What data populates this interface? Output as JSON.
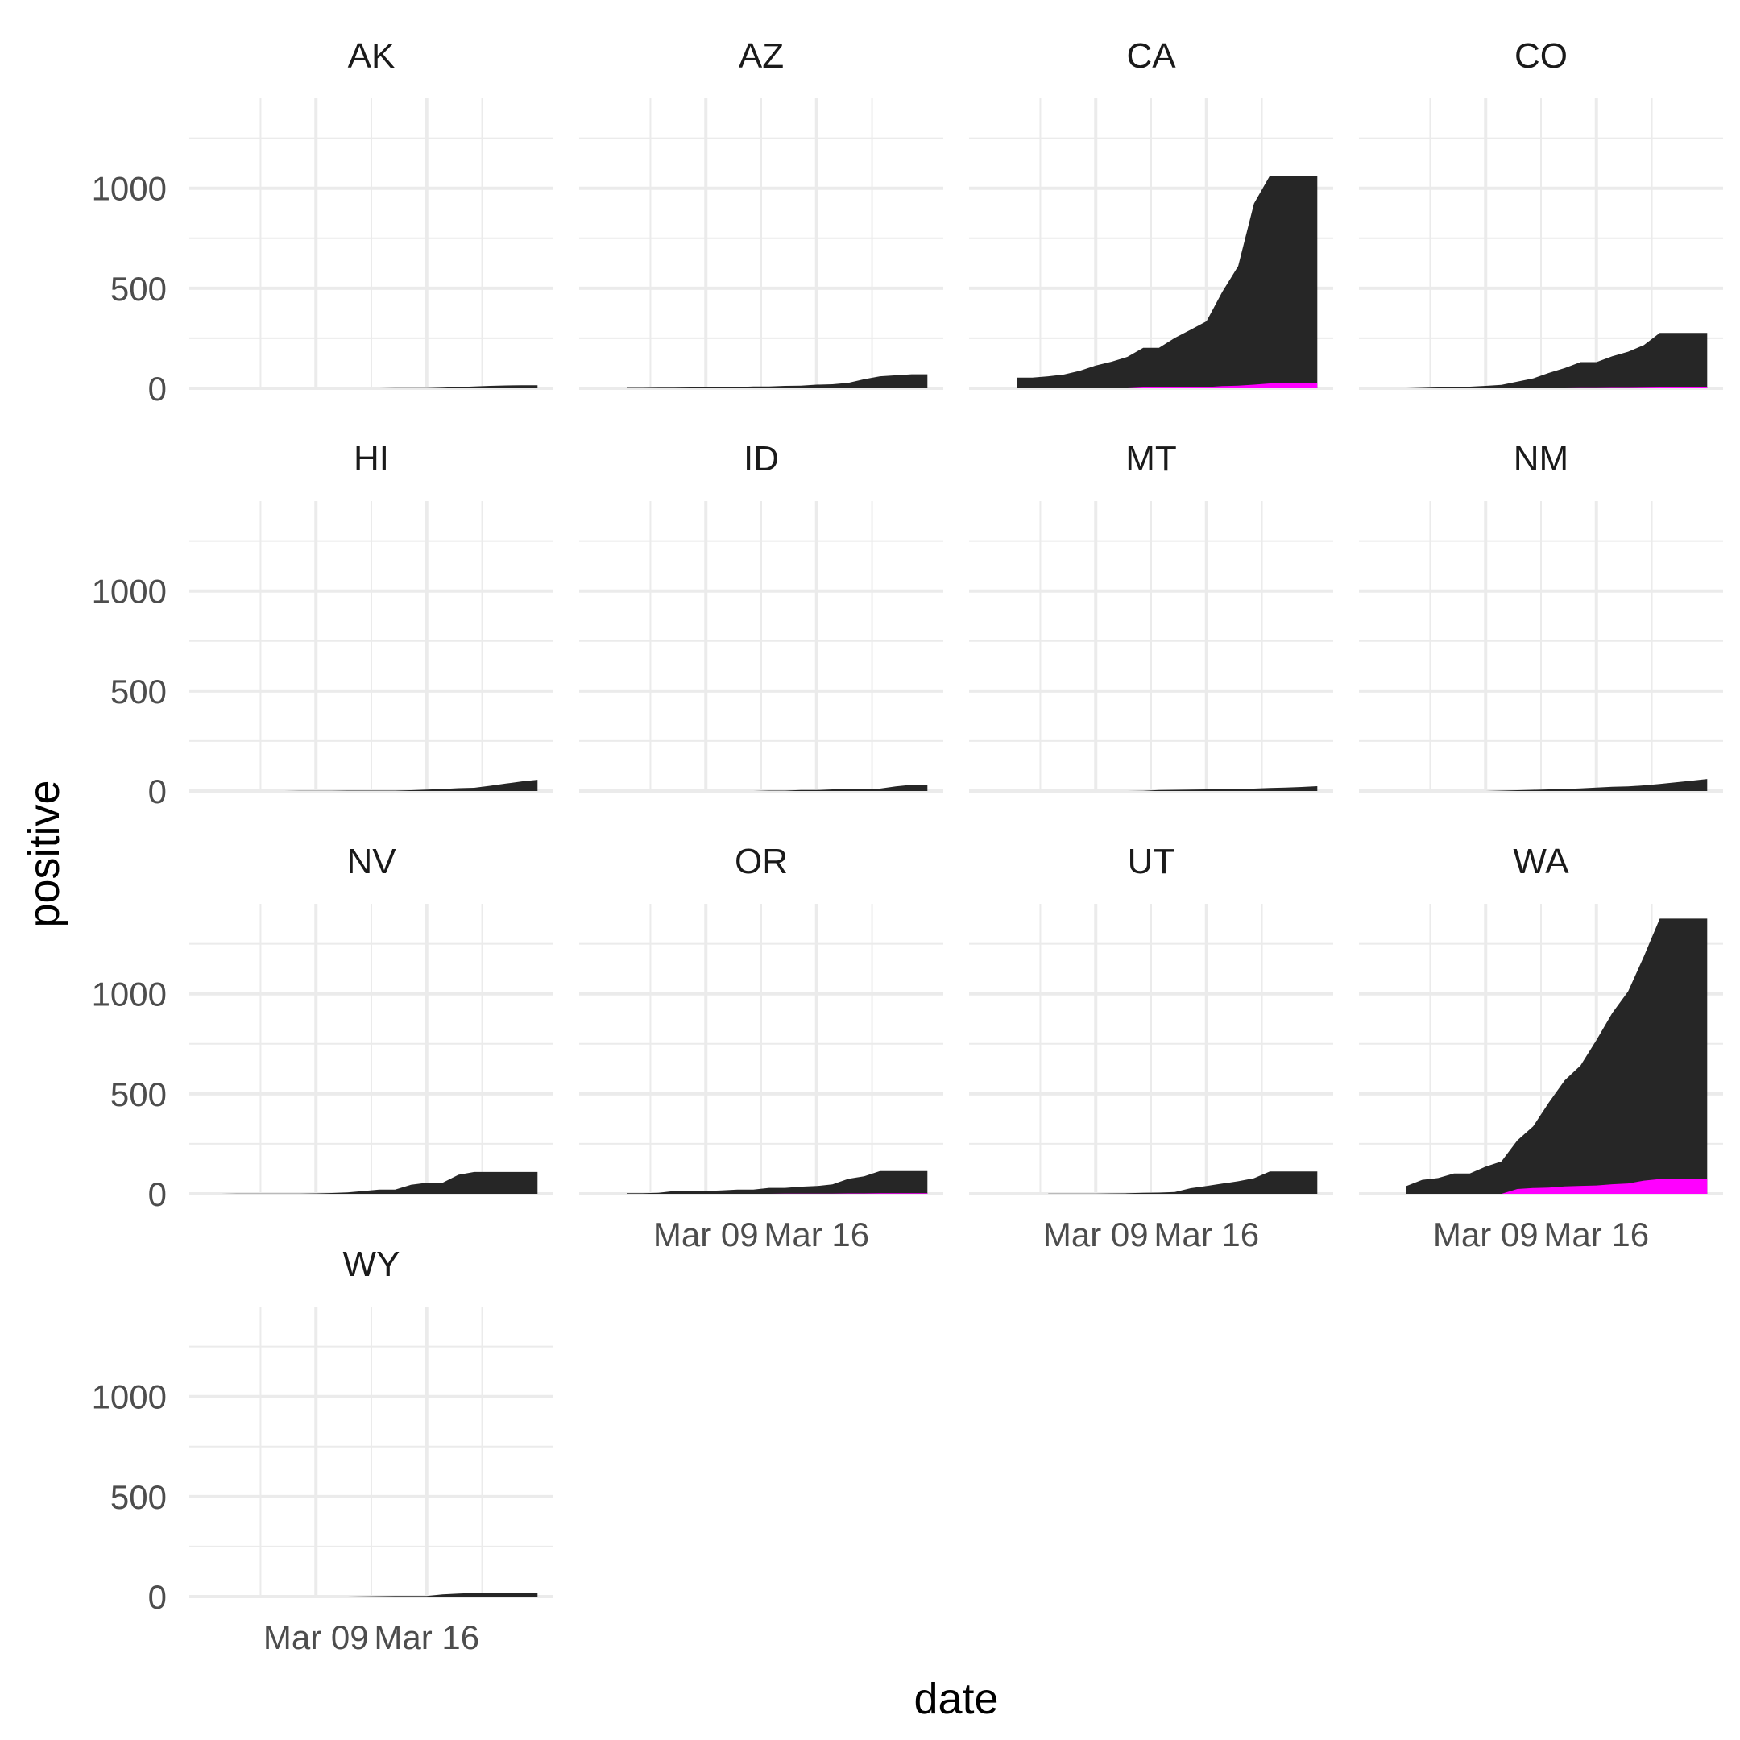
{
  "chart_data": {
    "type": "area",
    "layout": "facet_wrap",
    "ncol": 4,
    "xlabel": "date",
    "ylabel": "positive",
    "ylim": [
      0,
      1450
    ],
    "xlim": [
      "2020-03-01",
      "2020-03-24"
    ],
    "yticks": [
      0,
      500,
      1000
    ],
    "ytick_labels": [
      "0",
      "500",
      "1000"
    ],
    "xticks": [
      "2020-03-09",
      "2020-03-16"
    ],
    "xtick_labels": [
      "Mar 09",
      "Mar 16"
    ],
    "grid": true,
    "colors": {
      "positive": "#262626",
      "deaths": "#ff00ff"
    },
    "panels": [
      {
        "name": "AK",
        "dates": [
          "2020-03-10",
          "2020-03-11",
          "2020-03-12",
          "2020-03-13",
          "2020-03-14",
          "2020-03-15",
          "2020-03-16",
          "2020-03-17",
          "2020-03-18",
          "2020-03-19",
          "2020-03-20",
          "2020-03-21",
          "2020-03-22",
          "2020-03-23"
        ],
        "positive": [
          0,
          0,
          0,
          0,
          1,
          1,
          1,
          3,
          6,
          9,
          12,
          14,
          15,
          15
        ],
        "deaths": []
      },
      {
        "name": "AZ",
        "dates": [
          "2020-03-04",
          "2020-03-05",
          "2020-03-06",
          "2020-03-07",
          "2020-03-08",
          "2020-03-09",
          "2020-03-10",
          "2020-03-11",
          "2020-03-12",
          "2020-03-13",
          "2020-03-14",
          "2020-03-15",
          "2020-03-16",
          "2020-03-17",
          "2020-03-18",
          "2020-03-19",
          "2020-03-20",
          "2020-03-21",
          "2020-03-22",
          "2020-03-23"
        ],
        "positive": [
          2,
          2,
          3,
          3,
          4,
          5,
          6,
          6,
          9,
          9,
          12,
          13,
          18,
          20,
          27,
          45,
          60,
          65,
          70,
          70
        ],
        "deaths": []
      },
      {
        "name": "CA",
        "dates": [
          "2020-03-04",
          "2020-03-05",
          "2020-03-06",
          "2020-03-07",
          "2020-03-08",
          "2020-03-09",
          "2020-03-10",
          "2020-03-11",
          "2020-03-12",
          "2020-03-13",
          "2020-03-14",
          "2020-03-15",
          "2020-03-16",
          "2020-03-17",
          "2020-03-18",
          "2020-03-19",
          "2020-03-20",
          "2020-03-21",
          "2020-03-22",
          "2020-03-23"
        ],
        "positive": [
          53,
          53,
          60,
          69,
          88,
          114,
          133,
          157,
          202,
          202,
          252,
          293,
          335,
          483,
          611,
          924,
          1063,
          1063,
          1063,
          1063
        ],
        "deaths": [
          0,
          0,
          0,
          0,
          0,
          0,
          0,
          0,
          4,
          4,
          5,
          5,
          6,
          11,
          13,
          18,
          24,
          24,
          24,
          24
        ]
      },
      {
        "name": "CO",
        "dates": [
          "2020-03-04",
          "2020-03-05",
          "2020-03-06",
          "2020-03-07",
          "2020-03-08",
          "2020-03-09",
          "2020-03-10",
          "2020-03-11",
          "2020-03-12",
          "2020-03-13",
          "2020-03-14",
          "2020-03-15",
          "2020-03-16",
          "2020-03-17",
          "2020-03-18",
          "2020-03-19",
          "2020-03-20",
          "2020-03-21",
          "2020-03-22",
          "2020-03-23"
        ],
        "positive": [
          0,
          2,
          4,
          8,
          8,
          12,
          17,
          33,
          49,
          77,
          101,
          131,
          131,
          160,
          183,
          216,
          277,
          277,
          277,
          277
        ],
        "deaths": [
          0,
          0,
          0,
          0,
          0,
          0,
          0,
          0,
          0,
          0,
          0,
          1,
          1,
          2,
          2,
          3,
          4,
          4,
          4,
          4
        ]
      },
      {
        "name": "HI",
        "dates": [
          "2020-03-06",
          "2020-03-07",
          "2020-03-08",
          "2020-03-09",
          "2020-03-10",
          "2020-03-11",
          "2020-03-12",
          "2020-03-13",
          "2020-03-14",
          "2020-03-15",
          "2020-03-16",
          "2020-03-17",
          "2020-03-18",
          "2020-03-19",
          "2020-03-20",
          "2020-03-21",
          "2020-03-22",
          "2020-03-23"
        ],
        "positive": [
          0,
          0,
          1,
          1,
          1,
          2,
          2,
          2,
          2,
          4,
          7,
          10,
          14,
          16,
          26,
          37,
          48,
          56
        ],
        "deaths": []
      },
      {
        "name": "ID",
        "dates": [
          "2020-03-12",
          "2020-03-13",
          "2020-03-14",
          "2020-03-15",
          "2020-03-16",
          "2020-03-17",
          "2020-03-18",
          "2020-03-19",
          "2020-03-20",
          "2020-03-21",
          "2020-03-22",
          "2020-03-23"
        ],
        "positive": [
          0,
          2,
          2,
          5,
          5,
          8,
          9,
          11,
          12,
          23,
          31,
          31
        ],
        "deaths": []
      },
      {
        "name": "MT",
        "dates": [
          "2020-03-11",
          "2020-03-12",
          "2020-03-13",
          "2020-03-14",
          "2020-03-15",
          "2020-03-16",
          "2020-03-17",
          "2020-03-18",
          "2020-03-19",
          "2020-03-20",
          "2020-03-21",
          "2020-03-22",
          "2020-03-23"
        ],
        "positive": [
          0,
          1,
          5,
          6,
          7,
          8,
          9,
          11,
          12,
          15,
          17,
          20,
          24
        ],
        "deaths": []
      },
      {
        "name": "NM",
        "dates": [
          "2020-03-09",
          "2020-03-10",
          "2020-03-11",
          "2020-03-12",
          "2020-03-13",
          "2020-03-14",
          "2020-03-15",
          "2020-03-16",
          "2020-03-17",
          "2020-03-18",
          "2020-03-19",
          "2020-03-20",
          "2020-03-21",
          "2020-03-22",
          "2020-03-23"
        ],
        "positive": [
          0,
          2,
          4,
          6,
          8,
          10,
          13,
          17,
          21,
          23,
          28,
          35,
          43,
          51,
          60
        ],
        "deaths": []
      },
      {
        "name": "NV",
        "dates": [
          "2020-03-02",
          "2020-03-03",
          "2020-03-04",
          "2020-03-05",
          "2020-03-06",
          "2020-03-07",
          "2020-03-08",
          "2020-03-09",
          "2020-03-10",
          "2020-03-11",
          "2020-03-12",
          "2020-03-13",
          "2020-03-14",
          "2020-03-15",
          "2020-03-16",
          "2020-03-17",
          "2020-03-18",
          "2020-03-19",
          "2020-03-20",
          "2020-03-21",
          "2020-03-22",
          "2020-03-23"
        ],
        "positive": [
          0,
          0,
          1,
          1,
          1,
          1,
          1,
          2,
          4,
          7,
          14,
          21,
          21,
          45,
          55,
          55,
          95,
          109,
          109,
          109,
          109,
          109
        ],
        "deaths": []
      },
      {
        "name": "OR",
        "dates": [
          "2020-03-04",
          "2020-03-05",
          "2020-03-06",
          "2020-03-07",
          "2020-03-08",
          "2020-03-09",
          "2020-03-10",
          "2020-03-11",
          "2020-03-12",
          "2020-03-13",
          "2020-03-14",
          "2020-03-15",
          "2020-03-16",
          "2020-03-17",
          "2020-03-18",
          "2020-03-19",
          "2020-03-20",
          "2020-03-21",
          "2020-03-22",
          "2020-03-23"
        ],
        "positive": [
          3,
          3,
          5,
          14,
          14,
          15,
          17,
          21,
          21,
          30,
          30,
          36,
          39,
          47,
          75,
          88,
          114,
          114,
          114,
          114
        ],
        "deaths": [
          0,
          0,
          0,
          0,
          0,
          0,
          0,
          0,
          0,
          0,
          1,
          1,
          1,
          1,
          2,
          2,
          3,
          3,
          3,
          3
        ]
      },
      {
        "name": "UT",
        "dates": [
          "2020-03-06",
          "2020-03-07",
          "2020-03-08",
          "2020-03-09",
          "2020-03-10",
          "2020-03-11",
          "2020-03-12",
          "2020-03-13",
          "2020-03-14",
          "2020-03-15",
          "2020-03-16",
          "2020-03-17",
          "2020-03-18",
          "2020-03-19",
          "2020-03-20",
          "2020-03-21",
          "2020-03-22",
          "2020-03-23"
        ],
        "positive": [
          1,
          1,
          1,
          1,
          2,
          3,
          5,
          6,
          9,
          28,
          39,
          51,
          63,
          78,
          112,
          112,
          112,
          112
        ],
        "deaths": []
      },
      {
        "name": "WA",
        "dates": [
          "2020-03-04",
          "2020-03-05",
          "2020-03-06",
          "2020-03-07",
          "2020-03-08",
          "2020-03-09",
          "2020-03-10",
          "2020-03-11",
          "2020-03-12",
          "2020-03-13",
          "2020-03-14",
          "2020-03-15",
          "2020-03-16",
          "2020-03-17",
          "2020-03-18",
          "2020-03-19",
          "2020-03-20",
          "2020-03-21",
          "2020-03-22",
          "2020-03-23"
        ],
        "positive": [
          39,
          70,
          79,
          102,
          102,
          136,
          162,
          267,
          337,
          457,
          568,
          642,
          769,
          904,
          1012,
          1187,
          1376,
          1376,
          1376,
          1376
        ],
        "deaths": [
          0,
          0,
          0,
          0,
          0,
          0,
          0,
          24,
          29,
          31,
          37,
          40,
          42,
          48,
          52,
          66,
          74,
          74,
          74,
          74
        ]
      },
      {
        "name": "WY",
        "dates": [
          "2020-03-11",
          "2020-03-12",
          "2020-03-13",
          "2020-03-14",
          "2020-03-15",
          "2020-03-16",
          "2020-03-17",
          "2020-03-18",
          "2020-03-19",
          "2020-03-20",
          "2020-03-21",
          "2020-03-22",
          "2020-03-23"
        ],
        "positive": [
          0,
          1,
          2,
          3,
          3,
          3,
          11,
          15,
          18,
          19,
          19,
          19,
          19
        ],
        "deaths": []
      }
    ]
  }
}
